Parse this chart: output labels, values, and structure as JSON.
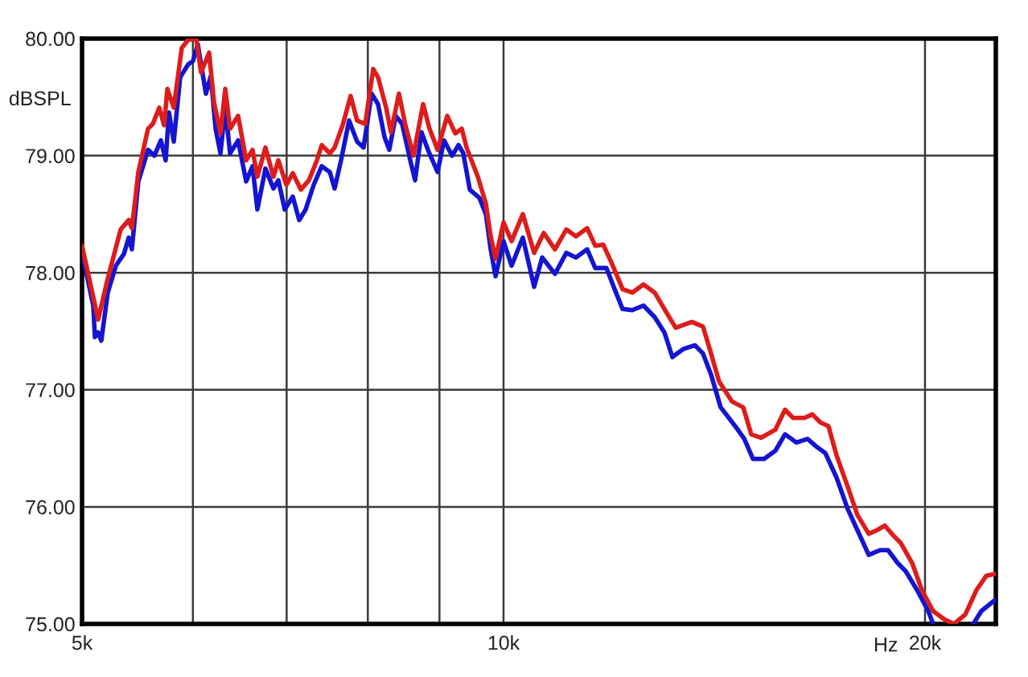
{
  "chart_data": {
    "type": "line",
    "xlabel": "Hz",
    "ylabel": "dBSPL",
    "log": "x",
    "grid": true,
    "line_style": "solid",
    "xlim": [
      5000,
      22470
    ],
    "xticks": [
      {
        "value": 5000,
        "label": "5k"
      },
      {
        "value": 6000,
        "label": null
      },
      {
        "value": 7000,
        "label": null
      },
      {
        "value": 8000,
        "label": null
      },
      {
        "value": 9000,
        "label": null
      },
      {
        "value": 10000,
        "label": "10k"
      },
      {
        "value": 20000,
        "label": "20k"
      }
    ],
    "ylim": [
      75,
      80
    ],
    "yticks": [
      {
        "value": 75,
        "label": "75.00"
      },
      {
        "value": 76,
        "label": "76.00"
      },
      {
        "value": 77,
        "label": "77.00"
      },
      {
        "value": 78,
        "label": "78.00"
      },
      {
        "value": 79,
        "label": "79.00"
      },
      {
        "value": 80,
        "label": "80.00"
      }
    ],
    "series": [
      {
        "color": "#dd1c1c",
        "x": [
          5000,
          5134,
          5216,
          5328,
          5399,
          5427,
          5485,
          5573,
          5617,
          5677,
          5722,
          5753,
          5814,
          5891,
          5954,
          6033,
          6081,
          6162,
          6211,
          6278,
          6328,
          6378,
          6463,
          6549,
          6618,
          6671,
          6760,
          6850,
          6905,
          6997,
          7071,
          7165,
          7261,
          7357,
          7416,
          7515,
          7575,
          7675,
          7777,
          7860,
          7965,
          8071,
          8135,
          8244,
          8310,
          8420,
          8510,
          8623,
          8761,
          8854,
          8972,
          9116,
          9237,
          9336,
          9410,
          9586,
          9714,
          9791,
          9869,
          10000,
          10133,
          10323,
          10516,
          10684,
          10883,
          11087,
          11264,
          11475,
          11628,
          11782,
          11939,
          12163,
          12357,
          12588,
          12823,
          13029,
          13272,
          13628,
          13882,
          14067,
          14255,
          14559,
          14832,
          15029,
          15270,
          15638,
          15888,
          16099,
          16400,
          16619,
          16840,
          17064,
          17292,
          17615,
          17897,
          18232,
          18474,
          18720,
          18970,
          19222,
          19582,
          19895,
          20267,
          20646,
          20976,
          21368,
          21768,
          22116,
          22470
        ],
        "values": [
          78.23,
          77.6,
          77.95,
          78.37,
          78.45,
          78.38,
          78.86,
          79.23,
          79.27,
          79.41,
          79.26,
          79.57,
          79.41,
          79.92,
          79.99,
          80.0,
          79.71,
          79.88,
          79.46,
          79.19,
          79.57,
          79.23,
          79.34,
          78.96,
          79.05,
          78.82,
          79.07,
          78.82,
          78.96,
          78.75,
          78.85,
          78.71,
          78.79,
          78.96,
          79.09,
          79.02,
          79.07,
          79.26,
          79.51,
          79.3,
          79.27,
          79.74,
          79.67,
          79.41,
          79.2,
          79.53,
          79.26,
          79.0,
          79.44,
          79.23,
          79.05,
          79.34,
          79.19,
          79.23,
          79.07,
          78.82,
          78.59,
          78.31,
          78.12,
          78.43,
          78.27,
          78.5,
          78.17,
          78.34,
          78.2,
          78.37,
          78.31,
          78.38,
          78.23,
          78.24,
          78.09,
          77.86,
          77.83,
          77.9,
          77.83,
          77.69,
          77.53,
          77.58,
          77.54,
          77.31,
          77.07,
          76.9,
          76.85,
          76.62,
          76.59,
          76.66,
          76.83,
          76.76,
          76.76,
          76.79,
          76.72,
          76.69,
          76.44,
          76.17,
          75.93,
          75.77,
          75.8,
          75.84,
          75.76,
          75.69,
          75.52,
          75.29,
          75.11,
          75.04,
          75.0,
          75.08,
          75.29,
          75.41,
          75.43
        ]
      },
      {
        "color": "#1414d2",
        "x": [
          5000,
          5093,
          5107,
          5134,
          5161,
          5216,
          5286,
          5356,
          5399,
          5427,
          5485,
          5573,
          5632,
          5692,
          5737,
          5768,
          5814,
          5876,
          5954,
          6001,
          6049,
          6081,
          6130,
          6179,
          6228,
          6278,
          6328,
          6378,
          6463,
          6549,
          6618,
          6671,
          6760,
          6850,
          6905,
          6978,
          7071,
          7146,
          7222,
          7318,
          7416,
          7515,
          7575,
          7655,
          7757,
          7860,
          7944,
          8050,
          8135,
          8222,
          8287,
          8376,
          8465,
          8578,
          8646,
          8738,
          8831,
          8972,
          9068,
          9189,
          9286,
          9360,
          9460,
          9611,
          9714,
          9791,
          9869,
          10000,
          10133,
          10323,
          10516,
          10656,
          10883,
          11087,
          11264,
          11475,
          11628,
          11845,
          12003,
          12163,
          12357,
          12588,
          12823,
          13029,
          13201,
          13449,
          13700,
          13882,
          14067,
          14292,
          14637,
          14858,
          15070,
          15350,
          15638,
          15888,
          16185,
          16488,
          16707,
          16974,
          17292,
          17615,
          17897,
          18232,
          18573,
          18820,
          19121,
          19376,
          19738,
          20107,
          20267,
          20976,
          21653,
          21941,
          22470
        ],
        "values": [
          78.17,
          77.72,
          77.45,
          77.49,
          77.42,
          77.83,
          78.06,
          78.16,
          78.3,
          78.2,
          78.78,
          79.05,
          79.0,
          79.13,
          78.96,
          79.37,
          79.12,
          79.67,
          79.78,
          79.81,
          79.95,
          79.78,
          79.53,
          79.68,
          79.23,
          79.02,
          79.41,
          79.02,
          79.13,
          78.78,
          78.91,
          78.54,
          78.89,
          78.72,
          78.79,
          78.54,
          78.65,
          78.45,
          78.54,
          78.75,
          78.91,
          78.86,
          78.72,
          78.96,
          79.3,
          79.12,
          79.07,
          79.53,
          79.44,
          79.16,
          79.05,
          79.34,
          79.27,
          78.96,
          78.79,
          79.2,
          79.05,
          78.86,
          79.13,
          79.0,
          79.09,
          79.02,
          78.71,
          78.64,
          78.5,
          78.2,
          77.97,
          78.27,
          78.06,
          78.3,
          77.88,
          78.13,
          77.99,
          78.17,
          78.13,
          78.2,
          78.04,
          78.04,
          77.86,
          77.69,
          77.68,
          77.72,
          77.62,
          77.49,
          77.28,
          77.35,
          77.38,
          77.31,
          77.13,
          76.85,
          76.69,
          76.58,
          76.41,
          76.41,
          76.48,
          76.62,
          76.55,
          76.58,
          76.52,
          76.46,
          76.25,
          75.98,
          75.8,
          75.59,
          75.63,
          75.63,
          75.52,
          75.45,
          75.29,
          75.11,
          75.0,
          null,
          75.0,
          75.11,
          75.21
        ]
      }
    ]
  }
}
